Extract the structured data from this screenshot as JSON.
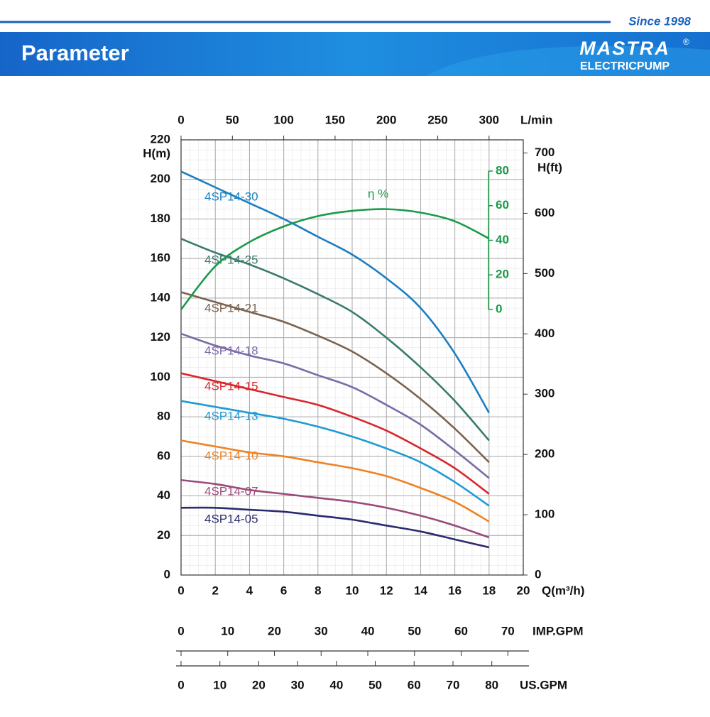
{
  "header": {
    "tagline": "Since 1998",
    "title": "Parameter",
    "logo": "MASTRA",
    "logo_mark": "®",
    "logo_sub": "ELECTRICPUMP"
  },
  "chart_data": {
    "type": "line",
    "x_label": "Q(m³/h)",
    "y_label": "H(m)",
    "x": [
      0,
      2,
      4,
      6,
      8,
      10,
      12,
      14,
      16,
      18
    ],
    "xlim": [
      0,
      20
    ],
    "xticks": [
      0,
      2,
      4,
      6,
      8,
      10,
      12,
      14,
      16,
      18,
      20
    ],
    "ylim": [
      0,
      220
    ],
    "yticks": [
      0,
      20,
      40,
      60,
      80,
      100,
      120,
      140,
      160,
      180,
      200,
      220
    ],
    "grid": true,
    "y2lim": [
      0,
      80
    ],
    "y2ticks": [
      0,
      20,
      40,
      60,
      80
    ],
    "top_axis": {
      "label": "L/min",
      "xlim": [
        0,
        333.3
      ],
      "xticks": [
        0,
        50,
        100,
        150,
        200,
        250,
        300
      ]
    },
    "right_axis": {
      "label": "H(ft)",
      "ylim": [
        0,
        721.8
      ],
      "yticks": [
        0,
        100,
        200,
        300,
        400,
        500,
        600,
        700
      ]
    },
    "imp_axis": {
      "label": "IMP.GPM",
      "xlim": [
        0,
        73.3
      ],
      "xticks": [
        0,
        10,
        20,
        30,
        40,
        50,
        60,
        70
      ]
    },
    "us_axis": {
      "label": "US.GPM",
      "xlim": [
        0,
        88.1
      ],
      "xticks": [
        0,
        10,
        20,
        30,
        40,
        50,
        60,
        70,
        80
      ]
    },
    "series": [
      {
        "name": "4SP14-30",
        "color": "#1a7fc1",
        "values": [
          204,
          196,
          188,
          180,
          171,
          162,
          150,
          135,
          112,
          82
        ]
      },
      {
        "name": "4SP14-25",
        "color": "#3a7a6e",
        "values": [
          170,
          163,
          157,
          150,
          142,
          133,
          120,
          105,
          88,
          68
        ]
      },
      {
        "name": "4SP14-21",
        "color": "#7a6350",
        "values": [
          143,
          138,
          133,
          128,
          121,
          113,
          102,
          89,
          74,
          57
        ]
      },
      {
        "name": "4SP14-18",
        "color": "#7a6aa8",
        "values": [
          122,
          116,
          111,
          107,
          101,
          95,
          86,
          76,
          63,
          49
        ]
      },
      {
        "name": "4SP14-15",
        "color": "#d8262b",
        "values": [
          102,
          98,
          94,
          90,
          86,
          80,
          73,
          64,
          54,
          41
        ]
      },
      {
        "name": "4SP14-13",
        "color": "#1e9ad6",
        "values": [
          88,
          85,
          82,
          79,
          75,
          70,
          64,
          57,
          47,
          35
        ]
      },
      {
        "name": "4SP14-10",
        "color": "#ef8222",
        "values": [
          68,
          65,
          62,
          60,
          57,
          54,
          50,
          44,
          37,
          27
        ]
      },
      {
        "name": "4SP14-07",
        "color": "#9b4a7a",
        "values": [
          48,
          46,
          43,
          41,
          39,
          37,
          34,
          30,
          25,
          19
        ]
      },
      {
        "name": "4SP14-05",
        "color": "#2b2a6e",
        "values": [
          34,
          34,
          33,
          32,
          30,
          28,
          25,
          22,
          18,
          14
        ]
      },
      {
        "name": "η %",
        "color": "#1a9a48",
        "axis": "y2",
        "values": [
          0,
          25,
          39,
          48,
          54,
          57,
          58,
          56,
          51,
          41
        ]
      }
    ]
  }
}
